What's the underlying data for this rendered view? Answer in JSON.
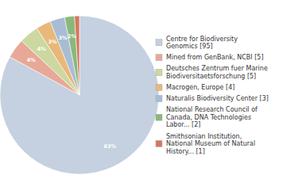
{
  "chart_data": {
    "type": "pie",
    "categories": [
      "Centre for Biodiversity\nGenomics [95]",
      "Mined from GenBank, NCBI [5]",
      "Deutsches Zentrum fuer Marine\nBiodiversitaetsforschung [5]",
      "Macrogen, Europe [4]",
      "Naturalis Biodiversity Center [3]",
      "National Research Council of\nCanada, DNA Technologies\nLabor... [2]",
      "Smithsonian Institution,\nNational Museum of Natural\nHistory... [1]"
    ],
    "values": [
      83,
      4,
      4,
      3,
      3,
      2,
      1
    ],
    "value_labels": [
      "83%",
      "4%",
      "4%",
      "3%",
      "3%",
      "2%",
      null
    ],
    "colors": [
      "#c5d0e0",
      "#e8a898",
      "#ccd8a0",
      "#e8b87a",
      "#a8bcd4",
      "#8ab87a",
      "#d47860"
    ],
    "data_labels": true,
    "legend": "right"
  }
}
